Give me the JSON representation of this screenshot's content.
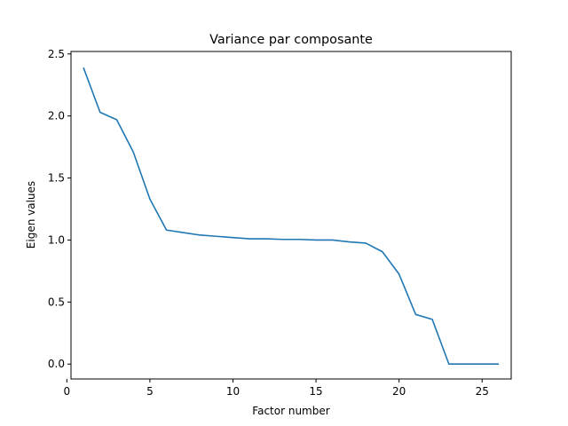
{
  "chart_data": {
    "type": "line",
    "title": "Variance par composante",
    "xlabel": "Factor number",
    "ylabel": "Eigen values",
    "xlim": [
      0.25,
      26.75
    ],
    "ylim": [
      -0.12,
      2.52
    ],
    "xticks": [
      0,
      5,
      10,
      15,
      20,
      25
    ],
    "yticks": [
      0.0,
      0.5,
      1.0,
      1.5,
      2.0,
      2.5
    ],
    "xtick_labels": [
      "0",
      "5",
      "10",
      "15",
      "20",
      "25"
    ],
    "ytick_labels": [
      "0.0",
      "0.5",
      "1.0",
      "1.5",
      "2.0",
      "2.5"
    ],
    "grid": false,
    "colors": {
      "line": "#1f77b4"
    },
    "series": [
      {
        "x": [
          1,
          2,
          3,
          4,
          5,
          6,
          7,
          8,
          9,
          10,
          11,
          12,
          13,
          14,
          15,
          16,
          17,
          18,
          19,
          20,
          21,
          22,
          23,
          24,
          25,
          26
        ],
        "values": [
          2.39,
          2.03,
          1.97,
          1.71,
          1.33,
          1.08,
          1.06,
          1.04,
          1.03,
          1.02,
          1.01,
          1.01,
          1.005,
          1.005,
          1.0,
          1.0,
          0.985,
          0.975,
          0.905,
          0.725,
          0.4,
          0.36,
          0.0,
          0.0,
          0.0,
          0.0
        ]
      }
    ]
  }
}
